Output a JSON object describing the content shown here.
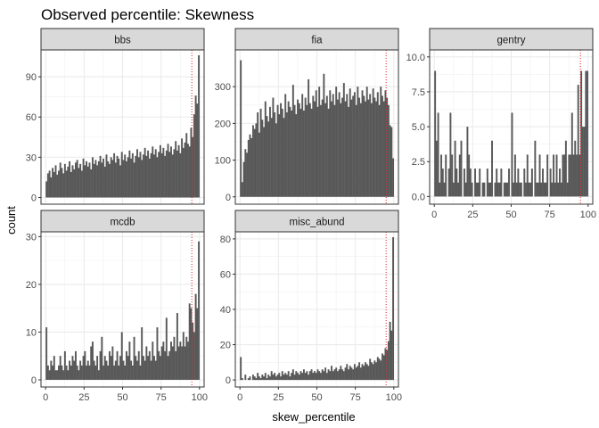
{
  "chart_data": {
    "type": "bar",
    "title": "Observed percentile: Skewness",
    "xlabel": "skew_percentile",
    "ylabel": "count",
    "grid": true,
    "reference_line": {
      "x": 95,
      "color": "#e31a1c",
      "style": "dotted"
    },
    "bar_color": "#595959",
    "x_ticks": [
      0,
      25,
      50,
      75,
      100
    ],
    "xlim": [
      -3,
      103
    ],
    "panels": [
      {
        "name": "bbs",
        "ylim": [
          -5,
          110
        ],
        "y_ticks": [
          0,
          30,
          60,
          90
        ],
        "x_ticks": [],
        "values": [
          12,
          18,
          20,
          15,
          22,
          19,
          24,
          17,
          20,
          26,
          22,
          18,
          25,
          20,
          23,
          27,
          19,
          24,
          21,
          26,
          28,
          22,
          25,
          20,
          29,
          24,
          27,
          23,
          26,
          21,
          30,
          25,
          28,
          24,
          27,
          31,
          26,
          29,
          23,
          32,
          27,
          25,
          30,
          28,
          33,
          26,
          31,
          29,
          24,
          34,
          28,
          32,
          27,
          30,
          35,
          29,
          33,
          26,
          31,
          36,
          30,
          34,
          28,
          32,
          37,
          31,
          35,
          29,
          33,
          38,
          32,
          36,
          30,
          34,
          39,
          33,
          37,
          31,
          35,
          40,
          34,
          38,
          32,
          36,
          42,
          35,
          39,
          33,
          44,
          37,
          41,
          48,
          40,
          38,
          52,
          45,
          62,
          76,
          70,
          106
        ]
      },
      {
        "name": "fia",
        "ylim": [
          -20,
          400
        ],
        "y_ticks": [
          0,
          100,
          200,
          300
        ],
        "x_ticks": [],
        "values": [
          372,
          40,
          95,
          130,
          120,
          155,
          170,
          160,
          195,
          185,
          200,
          230,
          175,
          240,
          210,
          190,
          260,
          220,
          205,
          245,
          215,
          270,
          230,
          200,
          250,
          225,
          255,
          240,
          215,
          280,
          230,
          260,
          245,
          235,
          305,
          250,
          225,
          265,
          255,
          240,
          280,
          235,
          270,
          250,
          320,
          255,
          240,
          275,
          260,
          290,
          245,
          300,
          250,
          265,
          335,
          255,
          275,
          240,
          290,
          260,
          280,
          250,
          300,
          265,
          285,
          255,
          270,
          310,
          260,
          280,
          245,
          295,
          265,
          275,
          285,
          250,
          300,
          270,
          255,
          290,
          275,
          260,
          300,
          265,
          280,
          255,
          295,
          270,
          260,
          285,
          250,
          300,
          275,
          260,
          290,
          270,
          250,
          195,
          190,
          105
        ]
      },
      {
        "name": "gentry",
        "ylim": [
          -0.55,
          10.5
        ],
        "y_ticks": [
          0.0,
          2.5,
          5.0,
          7.5,
          10.0
        ],
        "x_ticks": [
          0,
          25,
          50,
          75,
          100
        ],
        "values": [
          9,
          4,
          6,
          1,
          3,
          2,
          1,
          3,
          0,
          2,
          6,
          3,
          1,
          4,
          2,
          1,
          3,
          4,
          0,
          2,
          1,
          5,
          3,
          2,
          1,
          0,
          2,
          1,
          1,
          2,
          0,
          1,
          1,
          0,
          2,
          1,
          1,
          4,
          0,
          1,
          2,
          1,
          1,
          2,
          0,
          1,
          1,
          1,
          2,
          0,
          6,
          1,
          3,
          1,
          2,
          1,
          1,
          0,
          2,
          1,
          3,
          1,
          1,
          2,
          0,
          4,
          1,
          1,
          3,
          1,
          2,
          1,
          1,
          3,
          0,
          2,
          1,
          3,
          1,
          3,
          1,
          2,
          1,
          3,
          3,
          4,
          1,
          3,
          3,
          6,
          3,
          4,
          3,
          8,
          3,
          9,
          5,
          5,
          9,
          9
        ]
      },
      {
        "name": "mcdb",
        "ylim": [
          -1.5,
          31
        ],
        "y_ticks": [
          0,
          10,
          20,
          30
        ],
        "x_ticks": [
          0,
          25,
          50,
          75,
          100
        ],
        "values": [
          11,
          3,
          2,
          4,
          3,
          5,
          2,
          2,
          3,
          5,
          3,
          2,
          6,
          3,
          2,
          4,
          3,
          5,
          4,
          6,
          3,
          2,
          4,
          3,
          5,
          6,
          3,
          4,
          3,
          7,
          8,
          4,
          3,
          5,
          2,
          6,
          9,
          3,
          5,
          4,
          3,
          6,
          5,
          7,
          3,
          4,
          6,
          3,
          5,
          10,
          4,
          3,
          6,
          5,
          8,
          4,
          3,
          9,
          5,
          4,
          6,
          3,
          11,
          5,
          4,
          7,
          5,
          6,
          4,
          8,
          5,
          4,
          11,
          6,
          5,
          7,
          8,
          6,
          13,
          5,
          6,
          8,
          7,
          9,
          6,
          14,
          7,
          8,
          7,
          10,
          7,
          9,
          8,
          16,
          15,
          12,
          10,
          18,
          15,
          29
        ]
      },
      {
        "name": "misc_abund",
        "ylim": [
          -4,
          84
        ],
        "y_ticks": [
          0,
          20,
          40,
          60,
          80
        ],
        "x_ticks": [
          0,
          25,
          50,
          75,
          100
        ],
        "values": [
          13,
          1,
          0,
          3,
          0,
          1,
          2,
          0,
          3,
          2,
          1,
          4,
          2,
          1,
          3,
          2,
          4,
          1,
          3,
          2,
          5,
          3,
          4,
          2,
          3,
          4,
          2,
          5,
          3,
          4,
          3,
          5,
          2,
          4,
          6,
          3,
          5,
          4,
          3,
          5,
          4,
          6,
          4,
          5,
          3,
          5,
          6,
          4,
          5,
          4,
          6,
          5,
          4,
          6,
          5,
          7,
          4,
          6,
          5,
          8,
          5,
          6,
          7,
          5,
          6,
          8,
          6,
          5,
          7,
          9,
          6,
          8,
          7,
          6,
          9,
          7,
          8,
          10,
          7,
          9,
          8,
          10,
          9,
          8,
          12,
          10,
          9,
          11,
          10,
          13,
          12,
          11,
          15,
          14,
          18,
          17,
          22,
          33,
          28,
          81
        ]
      }
    ]
  }
}
